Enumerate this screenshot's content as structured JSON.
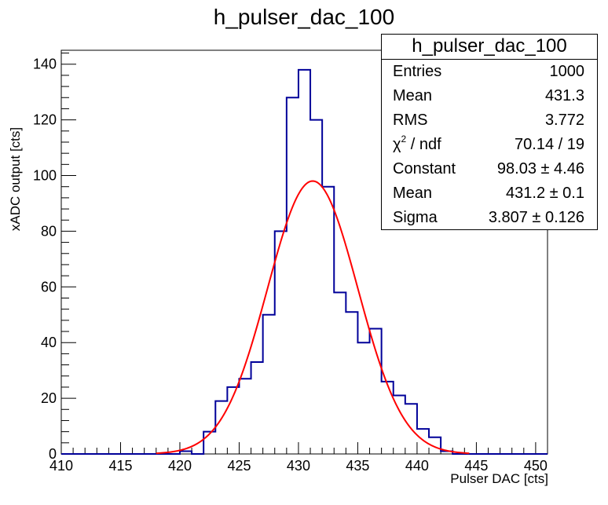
{
  "chart_data": {
    "type": "bar",
    "title": "h_pulser_dac_100",
    "xlabel": "Pulser DAC [cts]",
    "ylabel": "xADC output [cts]",
    "xlim": [
      410,
      451
    ],
    "ylim": [
      0,
      145
    ],
    "x_ticks": [
      410,
      415,
      420,
      425,
      430,
      435,
      440,
      445,
      450
    ],
    "y_ticks": [
      0,
      20,
      40,
      60,
      80,
      100,
      120,
      140
    ],
    "bin_width": 1,
    "bins": [
      410,
      411,
      412,
      413,
      414,
      415,
      416,
      417,
      418,
      419,
      420,
      421,
      422,
      423,
      424,
      425,
      426,
      427,
      428,
      429,
      430,
      431,
      432,
      433,
      434,
      435,
      436,
      437,
      438,
      439,
      440,
      441,
      442,
      443,
      444,
      445,
      446,
      447,
      448,
      449,
      450
    ],
    "counts": [
      0,
      0,
      0,
      0,
      0,
      0,
      0,
      0,
      0,
      0,
      1,
      0,
      8,
      19,
      24,
      27,
      33,
      50,
      80,
      128,
      138,
      120,
      96,
      58,
      51,
      40,
      45,
      26,
      21,
      18,
      9,
      6,
      1,
      0,
      0,
      0,
      0,
      0,
      0,
      0,
      0
    ],
    "fit": {
      "function": "gaus",
      "constant": 98.03,
      "mean": 431.2,
      "sigma": 3.807
    },
    "histogram_color": "#000099",
    "fit_color": "#ff0000",
    "grid": false
  },
  "statbox": {
    "title": "h_pulser_dac_100",
    "rows": [
      {
        "key": "Entries",
        "value": "1000"
      },
      {
        "key": "Mean",
        "value": "431.3"
      },
      {
        "key": "RMS",
        "value": "3.772"
      },
      {
        "key": "χ",
        "sup": "2",
        "key_suffix": " / ndf",
        "value": "70.14 / 19"
      },
      {
        "key": "Constant",
        "value": "98.03 ± 4.46"
      },
      {
        "key": "Mean",
        "value": "431.2 ± 0.1"
      },
      {
        "key": "Sigma",
        "value": "3.807 ± 0.126"
      }
    ]
  }
}
